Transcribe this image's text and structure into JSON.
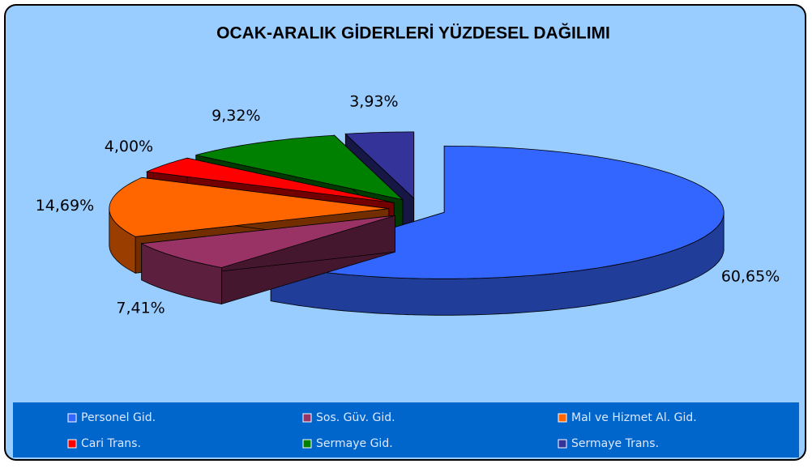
{
  "chart_data": {
    "type": "pie",
    "title": "OCAK-ARALIK GİDERLERİ YÜZDESEL DAĞILIMI",
    "categories": [
      "Personel Gid.",
      "Sos. Güv. Gid.",
      "Mal ve Hizmet Al. Gid.",
      "Cari Trans.",
      "Sermaye Gid.",
      "Sermaye Trans."
    ],
    "values": [
      60.65,
      7.41,
      14.69,
      4.0,
      9.32,
      3.93
    ],
    "value_labels": [
      "60,65%",
      "7,41%",
      "14,69%",
      "4,00%",
      "9,32%",
      "3,93%"
    ],
    "colors": [
      "#3366ff",
      "#993366",
      "#ff6600",
      "#ff0000",
      "#008000",
      "#333399"
    ],
    "legend": "bottom"
  }
}
